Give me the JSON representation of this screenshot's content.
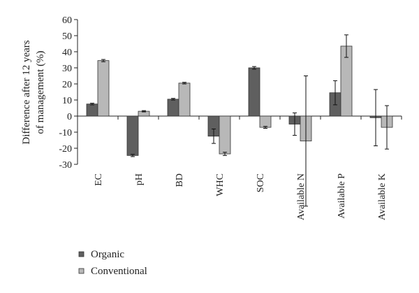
{
  "chart_data": {
    "type": "bar",
    "ylabel_lines": [
      "Difference after 12 years",
      "of management (%)"
    ],
    "ylim": [
      -30,
      60
    ],
    "yticks": [
      60,
      50,
      40,
      30,
      20,
      10,
      0,
      -10,
      -20,
      -30
    ],
    "categories": [
      "EC",
      "pH",
      "BD",
      "WHC",
      "SOC",
      "Available N",
      "Available P",
      "Available K"
    ],
    "series": [
      {
        "name": "Organic",
        "color": "#5f5f5f",
        "values": [
          7.5,
          -24.5,
          10.5,
          -12.5,
          30,
          -5,
          14.5,
          -1
        ],
        "errors": [
          0.5,
          0.7,
          0.5,
          4.5,
          0.8,
          7,
          7.5,
          17.5
        ]
      },
      {
        "name": "Conventional",
        "color": "#b8b8b8",
        "values": [
          34.5,
          3,
          20.5,
          -23.5,
          -7,
          -15.5,
          43.5,
          -7
        ],
        "errors": [
          0.7,
          0.4,
          0.5,
          1,
          0.6,
          40.5,
          7,
          13.5
        ]
      }
    ],
    "grid": false,
    "legend_position": "bottom-left"
  }
}
